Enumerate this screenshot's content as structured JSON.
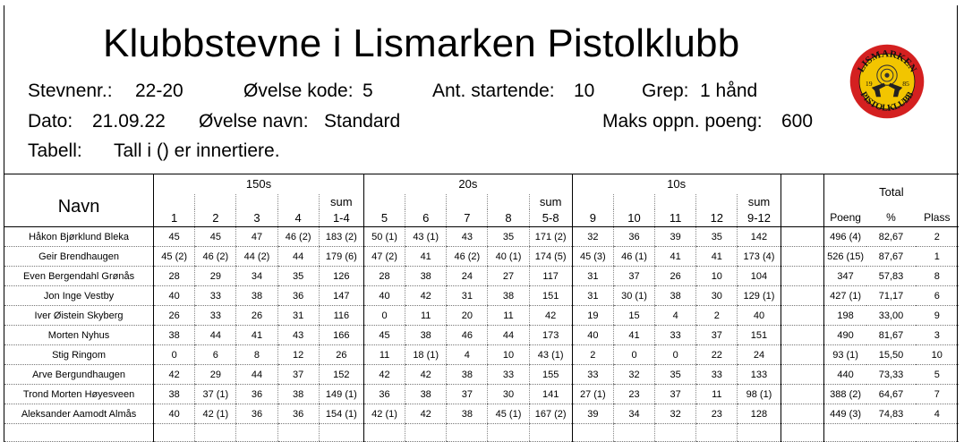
{
  "title": "Klubbstevne i Lismarken Pistolklubb",
  "info": {
    "stevnenr_label": "Stevnenr.:",
    "stevnenr": "22-20",
    "ovelse_kode_label": "Øvelse kode:",
    "ovelse_kode": "5",
    "startende_label": "Ant. startende:",
    "startende": "10",
    "grep_label": "Grep:",
    "grep": "1 hånd",
    "dato_label": "Dato:",
    "dato": "21.09.22",
    "ovelse_navn_label": "Øvelse navn:",
    "ovelse_navn": "Standard",
    "maks_label": "Maks oppn. poeng:",
    "maks": "600",
    "tabell_label": "Tabell:",
    "tabell": "Tall i () er innertiere."
  },
  "logo": {
    "top_text": "LISMARKEN",
    "bottom_text": "PISTOLKLUBB",
    "year_left": "19",
    "year_right": "85",
    "colors": {
      "ring": "#d42020",
      "fill": "#f2c500",
      "text": "#111111"
    }
  },
  "table": {
    "navn_header": "Navn",
    "group_150": "150s",
    "group_20": "20s",
    "group_10": "10s",
    "total_header": "Total",
    "sum_label": "sum",
    "cols": [
      "1",
      "2",
      "3",
      "4",
      "1-4",
      "5",
      "6",
      "7",
      "8",
      "5-8",
      "9",
      "10",
      "11",
      "12",
      "9-12"
    ],
    "poeng_label": "Poeng",
    "pct_label": "%",
    "plass_label": "Plass",
    "rows": [
      {
        "navn": "Håkon Bjørklund Bleka",
        "s": [
          "45",
          "45",
          "47",
          "46 (2)",
          "183 (2)",
          "50 (1)",
          "43 (1)",
          "43",
          "35",
          "171 (2)",
          "32",
          "36",
          "39",
          "35",
          "142"
        ],
        "poeng": "496 (4)",
        "pct": "82,67",
        "plass": "2"
      },
      {
        "navn": "Geir Brendhaugen",
        "s": [
          "45 (2)",
          "46 (2)",
          "44 (2)",
          "44",
          "179 (6)",
          "47 (2)",
          "41",
          "46 (2)",
          "40 (1)",
          "174 (5)",
          "45 (3)",
          "46 (1)",
          "41",
          "41",
          "173 (4)"
        ],
        "poeng": "526 (15)",
        "pct": "87,67",
        "plass": "1"
      },
      {
        "navn": "Even Bergendahl Grønås",
        "s": [
          "28",
          "29",
          "34",
          "35",
          "126",
          "28",
          "38",
          "24",
          "27",
          "117",
          "31",
          "37",
          "26",
          "10",
          "104"
        ],
        "poeng": "347",
        "pct": "57,83",
        "plass": "8"
      },
      {
        "navn": "Jon Inge Vestby",
        "s": [
          "40",
          "33",
          "38",
          "36",
          "147",
          "40",
          "42",
          "31",
          "38",
          "151",
          "31",
          "30 (1)",
          "38",
          "30",
          "129 (1)"
        ],
        "poeng": "427 (1)",
        "pct": "71,17",
        "plass": "6"
      },
      {
        "navn": "Iver Øistein Skyberg",
        "s": [
          "26",
          "33",
          "26",
          "31",
          "116",
          "0",
          "11",
          "20",
          "11",
          "42",
          "19",
          "15",
          "4",
          "2",
          "40"
        ],
        "poeng": "198",
        "pct": "33,00",
        "plass": "9"
      },
      {
        "navn": "Morten Nyhus",
        "s": [
          "38",
          "44",
          "41",
          "43",
          "166",
          "45",
          "38",
          "46",
          "44",
          "173",
          "40",
          "41",
          "33",
          "37",
          "151"
        ],
        "poeng": "490",
        "pct": "81,67",
        "plass": "3"
      },
      {
        "navn": "Stig Ringom",
        "s": [
          "0",
          "6",
          "8",
          "12",
          "26",
          "11",
          "18 (1)",
          "4",
          "10",
          "43 (1)",
          "2",
          "0",
          "0",
          "22",
          "24"
        ],
        "poeng": "93 (1)",
        "pct": "15,50",
        "plass": "10"
      },
      {
        "navn": "Arve Bergundhaugen",
        "s": [
          "42",
          "29",
          "44",
          "37",
          "152",
          "42",
          "42",
          "38",
          "33",
          "155",
          "33",
          "32",
          "35",
          "33",
          "133"
        ],
        "poeng": "440",
        "pct": "73,33",
        "plass": "5"
      },
      {
        "navn": "Trond Morten Høyesveen",
        "s": [
          "38",
          "37 (1)",
          "36",
          "38",
          "149 (1)",
          "36",
          "38",
          "37",
          "30",
          "141",
          "27 (1)",
          "23",
          "37",
          "11",
          "98 (1)"
        ],
        "poeng": "388 (2)",
        "pct": "64,67",
        "plass": "7"
      },
      {
        "navn": "Aleksander Aamodt Almås",
        "s": [
          "40",
          "42 (1)",
          "36",
          "36",
          "154 (1)",
          "42 (1)",
          "42",
          "38",
          "45 (1)",
          "167 (2)",
          "39",
          "34",
          "32",
          "23",
          "128"
        ],
        "poeng": "449 (3)",
        "pct": "74,83",
        "plass": "4"
      }
    ]
  }
}
